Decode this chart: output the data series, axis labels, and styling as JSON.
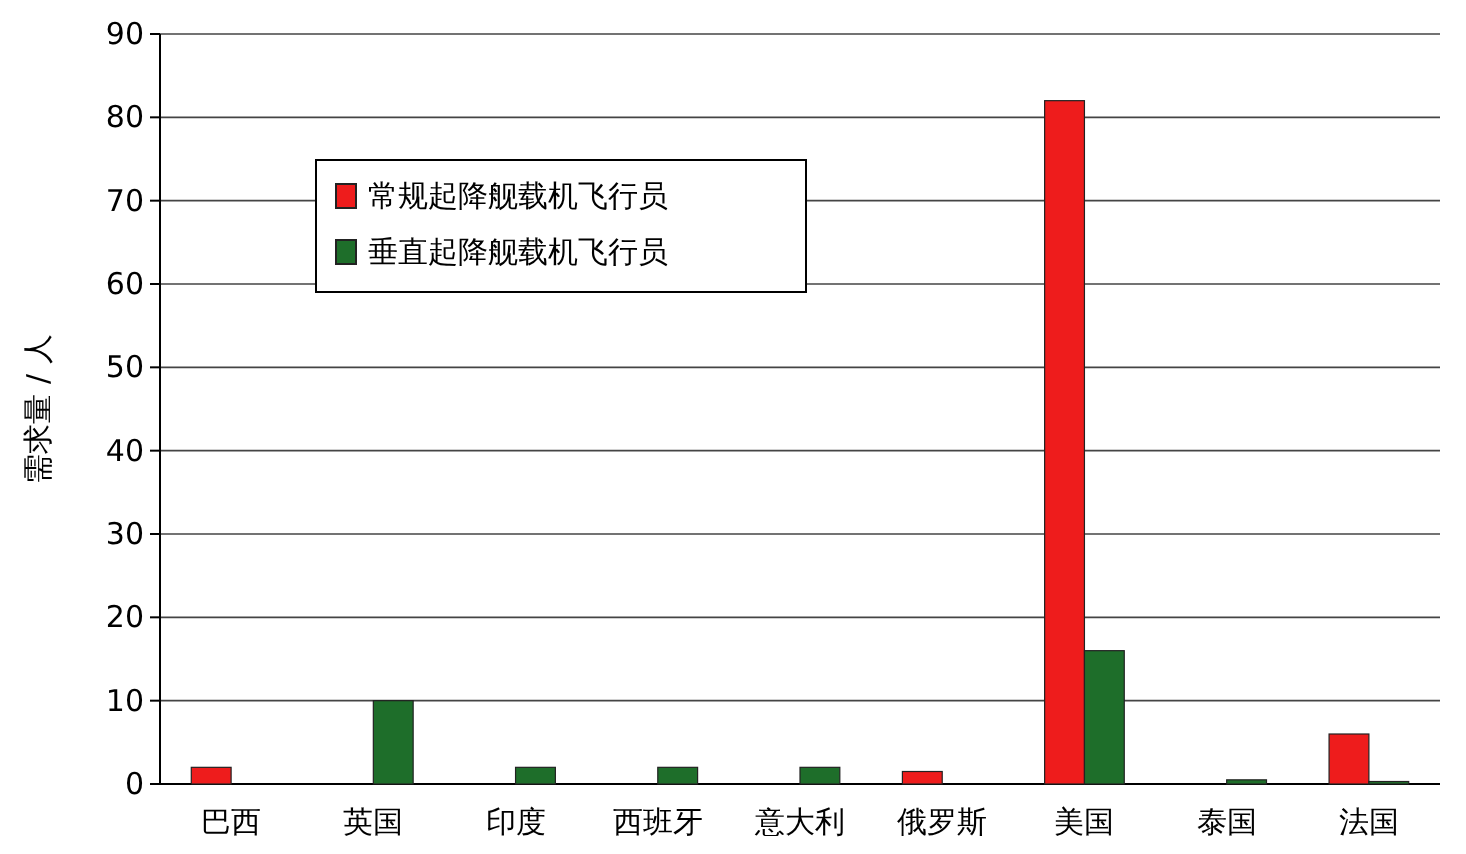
{
  "chart_data": {
    "type": "bar",
    "ylabel": "需求量 / 人",
    "categories": [
      "巴西",
      "英国",
      "印度",
      "西班牙",
      "意大利",
      "俄罗斯",
      "美国",
      "泰国",
      "法国"
    ],
    "series": [
      {
        "name": "常规起降舰载机飞行员",
        "color": "#ee1c1c",
        "values": [
          2,
          0,
          0,
          0,
          0,
          1.5,
          82,
          0,
          6
        ]
      },
      {
        "name": "垂直起降舰载机飞行员",
        "color": "#1e6e2a",
        "values": [
          0,
          10,
          2,
          2,
          2,
          0,
          16,
          0.5,
          0.3
        ]
      }
    ],
    "ylim": [
      0,
      90
    ],
    "yticks": [
      0,
      10,
      20,
      30,
      40,
      50,
      60,
      70,
      80,
      90
    ],
    "grid": "y",
    "legend": "top left"
  }
}
